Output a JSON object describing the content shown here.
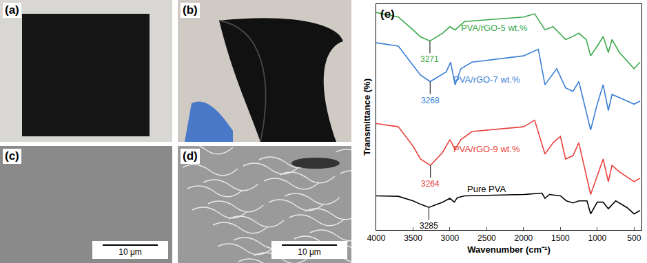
{
  "panels": [
    {
      "label": "(a)"
    },
    {
      "label": "(b)"
    },
    {
      "label": "(c)",
      "scale_bar": "10 μm"
    },
    {
      "label": "(d)",
      "scale_bar": "10 μm"
    }
  ],
  "chart_data": {
    "type": "line",
    "panel_label": "(e)",
    "x_label": "Wavenumber (cm⁻¹)",
    "y_label": "Transmittance (%)",
    "xlim": [
      4000,
      400
    ],
    "xticks": [
      4000,
      3500,
      3000,
      2500,
      2000,
      1500,
      1000,
      500
    ],
    "ylim": [
      0,
      100
    ],
    "tick_labels": "x",
    "grid": false,
    "series": [
      {
        "name": "PVA/rGO-5 wt.%",
        "color": "#3aa84a",
        "x": [
          4000,
          3700,
          3500,
          3400,
          3271,
          3100,
          3000,
          2930,
          2800,
          2000,
          1850,
          1710,
          1600,
          1430,
          1330,
          1250,
          1150,
          1090,
          1000,
          920,
          850,
          800,
          700,
          500,
          420
        ],
        "values": [
          96.3,
          94.3,
          88.6,
          85.5,
          83.7,
          87.1,
          90.0,
          88.6,
          92.3,
          94.3,
          95.7,
          88.6,
          90.0,
          84.3,
          85.7,
          87.1,
          84.3,
          77.1,
          81.4,
          85.7,
          78.6,
          84.3,
          78.6,
          71.4,
          74.3
        ],
        "label_at": {
          "x": 2400,
          "y": 89.4
        },
        "peak": {
          "x": 3271,
          "y": 83.7
        }
      },
      {
        "name": "PVA/rGO-7 wt.%",
        "color": "#3a7fd5",
        "x": [
          4000,
          3700,
          3500,
          3400,
          3268,
          3050,
          2990,
          2930,
          2850,
          2700,
          2000,
          1800,
          1710,
          1650,
          1550,
          1430,
          1330,
          1250,
          1090,
          1000,
          920,
          850,
          800,
          700,
          500,
          420
        ],
        "values": [
          82.9,
          81.4,
          72.9,
          68.6,
          65.7,
          70.0,
          74.3,
          64.3,
          71.4,
          74.3,
          77.1,
          80.0,
          64.3,
          67.1,
          71.4,
          62.9,
          61.4,
          65.7,
          44.3,
          55.7,
          64.3,
          52.9,
          60.0,
          58.6,
          55.7,
          57.1
        ],
        "label_at": {
          "x": 2500,
          "y": 66.6
        },
        "peak": {
          "x": 3268,
          "y": 65.7
        }
      },
      {
        "name": "PVA/rGO-9 wt.%",
        "color": "#e8413c",
        "x": [
          4000,
          3700,
          3500,
          3400,
          3264,
          3100,
          3000,
          2930,
          2850,
          2700,
          2000,
          1850,
          1710,
          1600,
          1500,
          1430,
          1330,
          1250,
          1090,
          1000,
          920,
          850,
          800,
          700,
          500,
          420
        ],
        "values": [
          47.1,
          45.7,
          37.1,
          31.4,
          28.6,
          34.3,
          40.0,
          35.7,
          40.0,
          43.6,
          45.7,
          48.6,
          33.6,
          38.6,
          41.4,
          31.4,
          32.9,
          38.6,
          15.7,
          24.3,
          31.4,
          21.4,
          28.6,
          25.7,
          21.4,
          22.9
        ],
        "label_at": {
          "x": 2500,
          "y": 35.7
        },
        "peak": {
          "x": 3264,
          "y": 28.6
        }
      },
      {
        "name": "Pure PVA",
        "color": "#000000",
        "x": [
          4000,
          3700,
          3500,
          3400,
          3285,
          3100,
          3000,
          2940,
          2900,
          2800,
          2000,
          1750,
          1710,
          1650,
          1500,
          1420,
          1330,
          1250,
          1140,
          1090,
          1000,
          920,
          850,
          750,
          600,
          500,
          420
        ],
        "values": [
          15.1,
          14.9,
          12.9,
          11.4,
          10.0,
          12.3,
          14.0,
          12.3,
          14.3,
          15.1,
          15.7,
          16.3,
          14.0,
          15.7,
          15.1,
          12.9,
          12.0,
          12.9,
          12.9,
          7.1,
          12.3,
          12.3,
          9.4,
          12.9,
          10.0,
          7.1,
          8.6
        ],
        "label_at": {
          "x": 2500,
          "y": 18.0
        },
        "peak": {
          "x": 3285,
          "y": 10.0
        }
      }
    ]
  }
}
